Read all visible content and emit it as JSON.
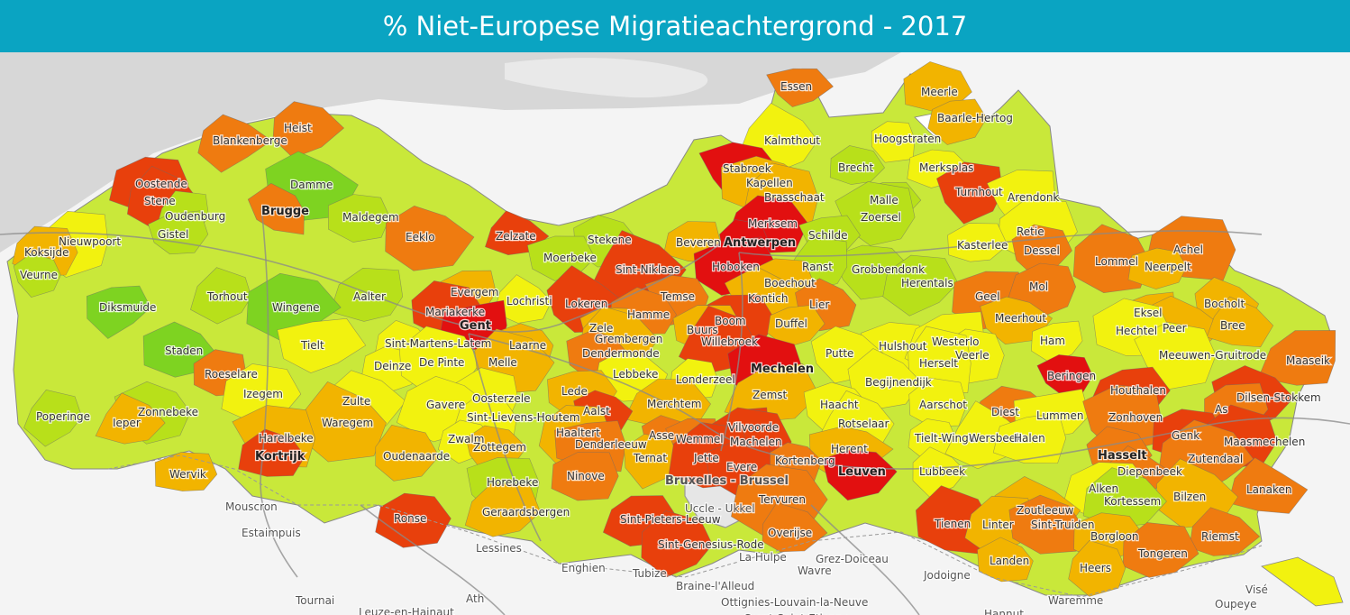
{
  "title": "% Niet-Europese Migratieachtergrond - 2017",
  "colors": {
    "header_bg": "#0aa4c2",
    "class_1": "#7ed321",
    "class_2": "#b8e01a",
    "class_3": "#f2f20f",
    "class_4": "#f2b400",
    "class_5": "#ef7b10",
    "class_6": "#e8400c",
    "class_7": "#e21010"
  },
  "places": [
    {
      "name": "Essen",
      "cls": 5
    },
    {
      "name": "Meerle",
      "cls": 4
    },
    {
      "name": "Baarle-Hertog",
      "cls": 4
    },
    {
      "name": "Kalmthout",
      "cls": 3
    },
    {
      "name": "Hoogstraten",
      "cls": 3
    },
    {
      "name": "Heist",
      "cls": 5
    },
    {
      "name": "Blankenberge",
      "cls": 5
    },
    {
      "name": "Brecht",
      "cls": 2
    },
    {
      "name": "Merksplas",
      "cls": 3
    },
    {
      "name": "Stabroek",
      "cls": 7
    },
    {
      "name": "Kapellen",
      "cls": 4
    },
    {
      "name": "Brasschaat",
      "cls": 4
    },
    {
      "name": "Turnhout",
      "cls": 6
    },
    {
      "name": "Arendonk",
      "cls": 3
    },
    {
      "name": "Oostende",
      "cls": 6
    },
    {
      "name": "Damme",
      "cls": 1
    },
    {
      "name": "Stene",
      "cls": 6
    },
    {
      "name": "Brugge",
      "cls": 5
    },
    {
      "name": "Malle",
      "cls": 2
    },
    {
      "name": "Zoersel",
      "cls": 2
    },
    {
      "name": "Oudenburg",
      "cls": 2
    },
    {
      "name": "Maldegem",
      "cls": 2
    },
    {
      "name": "Merksem",
      "cls": 7
    },
    {
      "name": "Retie",
      "cls": 3
    },
    {
      "name": "Gistel",
      "cls": 2
    },
    {
      "name": "Eeklo",
      "cls": 5
    },
    {
      "name": "Zelzate",
      "cls": 6
    },
    {
      "name": "Schilde",
      "cls": 2
    },
    {
      "name": "Nieuwpoort",
      "cls": 3
    },
    {
      "name": "Stekene",
      "cls": 2
    },
    {
      "name": "Beveren",
      "cls": 4
    },
    {
      "name": "Antwerpen",
      "cls": 7
    },
    {
      "name": "Kasterlee",
      "cls": 3
    },
    {
      "name": "Dessel",
      "cls": 5
    },
    {
      "name": "Achel",
      "cls": 5
    },
    {
      "name": "Koksijde",
      "cls": 4
    },
    {
      "name": "Lommel",
      "cls": 5
    },
    {
      "name": "Moerbeke",
      "cls": 2
    },
    {
      "name": "Neerpelt",
      "cls": 4
    },
    {
      "name": "Grobbendonk",
      "cls": 2
    },
    {
      "name": "Ranst",
      "cls": 2
    },
    {
      "name": "Hoboken",
      "cls": 7
    },
    {
      "name": "Veurne",
      "cls": 2
    },
    {
      "name": "Sint-Niklaas",
      "cls": 6
    },
    {
      "name": "Herentals",
      "cls": 2
    },
    {
      "name": "Torhout",
      "cls": 2
    },
    {
      "name": "Evergem",
      "cls": 4
    },
    {
      "name": "Lochristi",
      "cls": 3
    },
    {
      "name": "Aalter",
      "cls": 2
    },
    {
      "name": "Temse",
      "cls": 5
    },
    {
      "name": "Boechout",
      "cls": 4
    },
    {
      "name": "Geel",
      "cls": 5
    },
    {
      "name": "Mol",
      "cls": 5
    },
    {
      "name": "Kontich",
      "cls": 4
    },
    {
      "name": "Bocholt",
      "cls": 4
    },
    {
      "name": "Lokeren",
      "cls": 6
    },
    {
      "name": "Lier",
      "cls": 5
    },
    {
      "name": "Diksmuide",
      "cls": 1
    },
    {
      "name": "Wingene",
      "cls": 1
    },
    {
      "name": "Mariakerke",
      "cls": 6
    },
    {
      "name": "Eksel",
      "cls": 4
    },
    {
      "name": "Hamme",
      "cls": 5
    },
    {
      "name": "Gent",
      "cls": 7
    },
    {
      "name": "Meerhout",
      "cls": 4
    },
    {
      "name": "Boom",
      "cls": 6
    },
    {
      "name": "Duffel",
      "cls": 4
    },
    {
      "name": "Peer",
      "cls": 4
    },
    {
      "name": "Bree",
      "cls": 4
    },
    {
      "name": "Zele",
      "cls": 4
    },
    {
      "name": "Hechtel",
      "cls": 3
    },
    {
      "name": "Tielt",
      "cls": 3
    },
    {
      "name": "Buurs",
      "cls": 4
    },
    {
      "name": "Willebroek",
      "cls": 6
    },
    {
      "name": "Grembergen",
      "cls": 4
    },
    {
      "name": "Sint-Martens-Latem",
      "cls": 3
    },
    {
      "name": "Ham",
      "cls": 3
    },
    {
      "name": "Laarne",
      "cls": 4
    },
    {
      "name": "Hulshout",
      "cls": 3
    },
    {
      "name": "Westerlo",
      "cls": 3
    },
    {
      "name": "Staden",
      "cls": 1
    },
    {
      "name": "Dendermonde",
      "cls": 5
    },
    {
      "name": "Meeuwen-Gruitrode",
      "cls": 3
    },
    {
      "name": "Putte",
      "cls": 3
    },
    {
      "name": "Roeselare",
      "cls": 5
    },
    {
      "name": "Veerle",
      "cls": 3
    },
    {
      "name": "Maaseik",
      "cls": 5
    },
    {
      "name": "Deinze",
      "cls": 3
    },
    {
      "name": "De Pinte",
      "cls": 3
    },
    {
      "name": "Melle",
      "cls": 4
    },
    {
      "name": "Herselt",
      "cls": 3
    },
    {
      "name": "Beringen",
      "cls": 7
    },
    {
      "name": "Lebbeke",
      "cls": 3
    },
    {
      "name": "Mechelen",
      "cls": 7
    },
    {
      "name": "Londerzeel",
      "cls": 3
    },
    {
      "name": "Begijnendijk",
      "cls": 3
    },
    {
      "name": "Houthalen",
      "cls": 6
    },
    {
      "name": "Izegem",
      "cls": 3
    },
    {
      "name": "Lede",
      "cls": 4
    },
    {
      "name": "Zemst",
      "cls": 4
    },
    {
      "name": "Oosterzele",
      "cls": 3
    },
    {
      "name": "Dilsen-Stokkem",
      "cls": 6
    },
    {
      "name": "Zulte",
      "cls": 3
    },
    {
      "name": "Haacht",
      "cls": 3
    },
    {
      "name": "Aarschot",
      "cls": 3
    },
    {
      "name": "Zonnebeke",
      "cls": 2
    },
    {
      "name": "Gavere",
      "cls": 3
    },
    {
      "name": "Diest",
      "cls": 5
    },
    {
      "name": "Lummen",
      "cls": 3
    },
    {
      "name": "Zonhoven",
      "cls": 5
    },
    {
      "name": "Merchtem",
      "cls": 4
    },
    {
      "name": "Aalst",
      "cls": 6
    },
    {
      "name": "As",
      "cls": 5
    },
    {
      "name": "Poperinge",
      "cls": 2
    },
    {
      "name": "Sint-Lievens-Houtem",
      "cls": 3
    },
    {
      "name": "Rotselaar",
      "cls": 3
    },
    {
      "name": "Genk",
      "cls": 6
    },
    {
      "name": "Waregem",
      "cls": 4
    },
    {
      "name": "Ieper",
      "cls": 4
    },
    {
      "name": "Vilvoorde",
      "cls": 6
    },
    {
      "name": "Haaltert",
      "cls": 4
    },
    {
      "name": "Asse",
      "cls": 5
    },
    {
      "name": "Wemmel",
      "cls": 5
    },
    {
      "name": "Machelen",
      "cls": 6
    },
    {
      "name": "Maasmechelen",
      "cls": 6
    },
    {
      "name": "Tielt-Winge",
      "cls": 3
    },
    {
      "name": "Wersbeek",
      "cls": 3
    },
    {
      "name": "Halen",
      "cls": 3
    },
    {
      "name": "Harelbeke",
      "cls": 4
    },
    {
      "name": "Zwalm",
      "cls": 3
    },
    {
      "name": "Denderleeuw",
      "cls": 5
    },
    {
      "name": "Zottegem",
      "cls": 4
    },
    {
      "name": "Herent",
      "cls": 4
    },
    {
      "name": "Oudenaarde",
      "cls": 4
    },
    {
      "name": "Hasselt",
      "cls": 5
    },
    {
      "name": "Ternat",
      "cls": 4
    },
    {
      "name": "Kortrijk",
      "cls": 6
    },
    {
      "name": "Jette",
      "cls": 6
    },
    {
      "name": "Evere",
      "cls": 6
    },
    {
      "name": "Zutendaal",
      "cls": 5
    },
    {
      "name": "Kortenberg",
      "cls": 5
    },
    {
      "name": "Wervik",
      "cls": 4
    },
    {
      "name": "Diepenbeek",
      "cls": 5
    },
    {
      "name": "Leuven",
      "cls": 7
    },
    {
      "name": "Lubbeek",
      "cls": 3
    },
    {
      "name": "Ninove",
      "cls": 5
    },
    {
      "name": "Bruxelles - Brussel",
      "cls": 0
    },
    {
      "name": "Lanaken",
      "cls": 5
    },
    {
      "name": "Horebeke",
      "cls": 2
    },
    {
      "name": "Alken",
      "cls": 3
    },
    {
      "name": "Bilzen",
      "cls": 4
    },
    {
      "name": "Tervuren",
      "cls": 5
    },
    {
      "name": "Mouscron",
      "cls": 0
    },
    {
      "name": "Kortessem",
      "cls": 2
    },
    {
      "name": "Zoutleeuw",
      "cls": 4
    },
    {
      "name": "Uccle - Ukkel",
      "cls": 0
    },
    {
      "name": "Geraardsbergen",
      "cls": 4
    },
    {
      "name": "Tienen",
      "cls": 6
    },
    {
      "name": "Sint-Pieters-Leeuw",
      "cls": 6
    },
    {
      "name": "Linter",
      "cls": 4
    },
    {
      "name": "Sint-Truiden",
      "cls": 5
    },
    {
      "name": "Ronse",
      "cls": 6
    },
    {
      "name": "Estaimpuis",
      "cls": 0
    },
    {
      "name": "Overijse",
      "cls": 5
    },
    {
      "name": "Borgloon",
      "cls": 4
    },
    {
      "name": "Riemst",
      "cls": 5
    },
    {
      "name": "Sint-Genesius-Rode",
      "cls": 6
    },
    {
      "name": "Lessines",
      "cls": 0
    },
    {
      "name": "Tongeren",
      "cls": 5
    },
    {
      "name": "Grez-Doiceau",
      "cls": 0
    },
    {
      "name": "La Hulpe",
      "cls": 0
    },
    {
      "name": "Landen",
      "cls": 4
    },
    {
      "name": "Wavre",
      "cls": 0
    },
    {
      "name": "Heers",
      "cls": 4
    },
    {
      "name": "Enghien",
      "cls": 0
    },
    {
      "name": "Jodoigne",
      "cls": 0
    },
    {
      "name": "Tubize",
      "cls": 0
    },
    {
      "name": "Visé",
      "cls": 0
    },
    {
      "name": "Braine-l'Alleud",
      "cls": 0
    },
    {
      "name": "Ath",
      "cls": 0
    },
    {
      "name": "Waremme",
      "cls": 0
    },
    {
      "name": "Tournai",
      "cls": 0
    },
    {
      "name": "Ottignies-Louvain-la-Neuve",
      "cls": 0
    },
    {
      "name": "Oupeye",
      "cls": 0
    },
    {
      "name": "Leuze-en-Hainaut",
      "cls": 0
    },
    {
      "name": "Court-Saint-Etienne",
      "cls": 0
    },
    {
      "name": "Hannut",
      "cls": 0
    }
  ]
}
